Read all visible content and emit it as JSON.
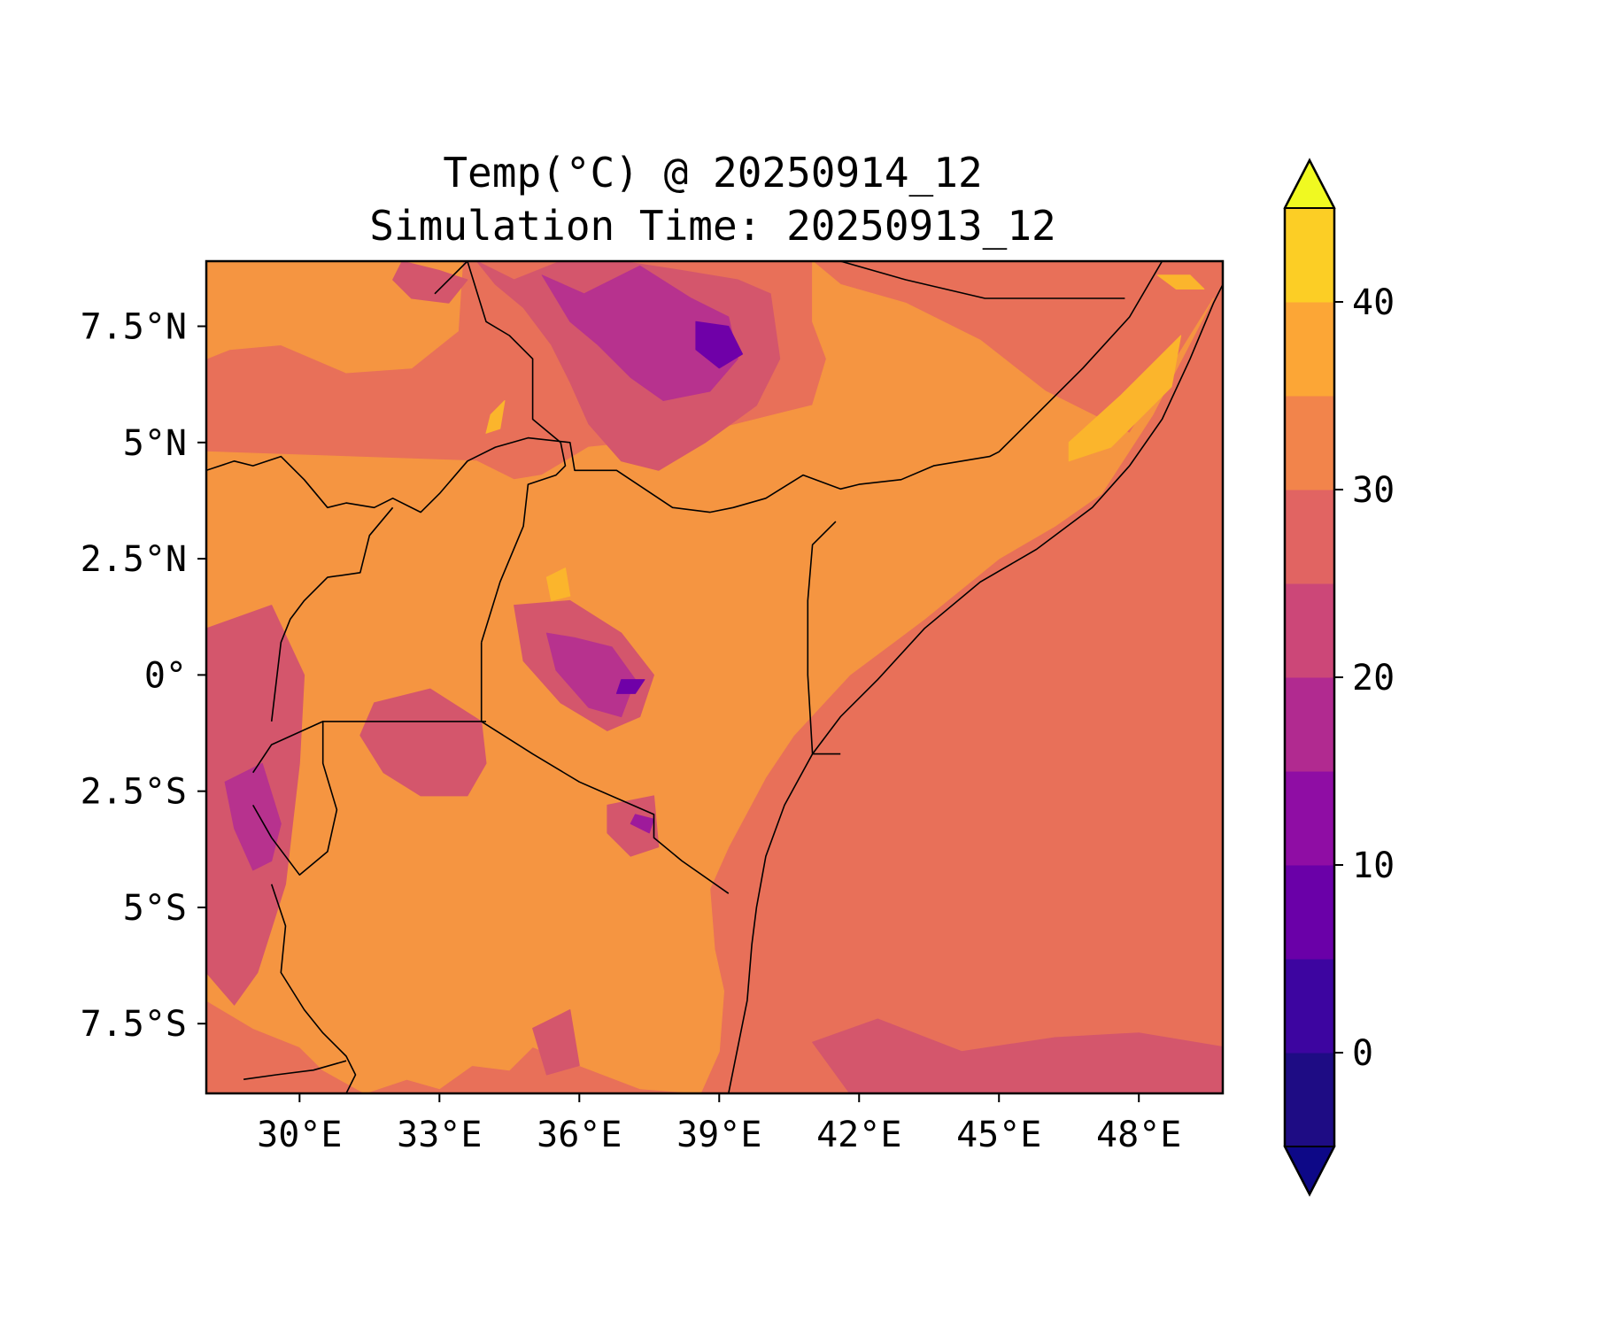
{
  "title": {
    "line1": "Temp(°C) @ 20250914_12",
    "line2": "Simulation Time: 20250913_12"
  },
  "map": {
    "extent": {
      "lon_min": 28.0,
      "lon_max": 49.8,
      "lat_min": -9.0,
      "lat_max": 8.9
    },
    "x_ticks": [
      {
        "value": 30,
        "label": "30°E"
      },
      {
        "value": 33,
        "label": "33°E"
      },
      {
        "value": 36,
        "label": "36°E"
      },
      {
        "value": 39,
        "label": "39°E"
      },
      {
        "value": 42,
        "label": "42°E"
      },
      {
        "value": 45,
        "label": "45°E"
      },
      {
        "value": 48,
        "label": "48°E"
      }
    ],
    "y_ticks": [
      {
        "value": 7.5,
        "label": "7.5°N"
      },
      {
        "value": 5,
        "label": "5°N"
      },
      {
        "value": 2.5,
        "label": "2.5°N"
      },
      {
        "value": 0,
        "label": "0°"
      },
      {
        "value": -2.5,
        "label": "2.5°S"
      },
      {
        "value": -5,
        "label": "5°S"
      },
      {
        "value": -7.5,
        "label": "7.5°S"
      }
    ],
    "colors": {
      "lt5": "#2a0b8a",
      "5_10": "#6f00a8",
      "10_15": "#9e1a9b",
      "15_20": "#b7328e",
      "20_25": "#d4566c",
      "25_30": "#e87059",
      "30_35": "#f59541",
      "35_40": "#fbb52c",
      "gt40": "#f0f921"
    },
    "regions": [
      {
        "level": "25_30",
        "lon": [
          28.0,
          49.8,
          49.8,
          28.0
        ],
        "lat": [
          8.9,
          8.9,
          -9.0,
          -9.0
        ]
      },
      {
        "level": "30_35",
        "lon": [
          28.0,
          33.8,
          34.6,
          35.2,
          36.2,
          38.2,
          41.0,
          41.3,
          41.0,
          41.0,
          41.6,
          43.0,
          44.6,
          46.0,
          47.8,
          49.6,
          48.3,
          47.2,
          46.2,
          45.0,
          43.4,
          41.8,
          40.6,
          40.0,
          39.2,
          38.8,
          38.9,
          39.1,
          39.0,
          38.6,
          37.3,
          36.0,
          35.0,
          34.5,
          33.7,
          33.0,
          32.3,
          31.4,
          30.5,
          30.0,
          29.0,
          28.0
        ],
        "lat": [
          4.8,
          4.6,
          4.2,
          4.3,
          4.9,
          5.1,
          5.8,
          6.8,
          7.6,
          8.9,
          8.4,
          8.0,
          7.2,
          6.1,
          5.2,
          8.1,
          5.6,
          3.9,
          3.2,
          2.5,
          1.2,
          0.0,
          -1.3,
          -2.2,
          -3.7,
          -4.6,
          -5.9,
          -6.8,
          -8.1,
          -9.0,
          -8.9,
          -8.4,
          -8.0,
          -8.5,
          -8.4,
          -8.9,
          -8.7,
          -9.0,
          -8.5,
          -8.0,
          -7.6,
          -7.0
        ]
      },
      {
        "level": "30_35",
        "lon": [
          28.0,
          33.5,
          33.4,
          32.4,
          31.0,
          29.6,
          28.5,
          28.0
        ],
        "lat": [
          8.9,
          8.9,
          7.4,
          6.6,
          6.5,
          7.1,
          7.0,
          6.8
        ]
      },
      {
        "level": "20_25",
        "lon": [
          33.8,
          34.6,
          35.6,
          36.9,
          38.2,
          39.4,
          40.1,
          40.3,
          39.8,
          38.7,
          37.7,
          36.9,
          36.2,
          35.8,
          35.4,
          34.8,
          34.2
        ],
        "lat": [
          8.9,
          8.5,
          8.9,
          8.9,
          8.7,
          8.5,
          8.2,
          6.8,
          5.8,
          5.0,
          4.4,
          4.6,
          5.4,
          6.3,
          7.1,
          7.9,
          8.4
        ]
      },
      {
        "level": "15_20",
        "lon": [
          35.2,
          36.1,
          37.3,
          38.4,
          39.2,
          39.4,
          38.8,
          37.8,
          37.1,
          36.4,
          35.8
        ],
        "lat": [
          8.6,
          8.2,
          8.8,
          8.1,
          7.7,
          6.8,
          6.1,
          5.9,
          6.4,
          7.1,
          7.6
        ]
      },
      {
        "level": "5_10",
        "lon": [
          38.5,
          39.2,
          39.5,
          39.0,
          38.5
        ],
        "lat": [
          7.6,
          7.5,
          6.9,
          6.6,
          7.0
        ]
      },
      {
        "level": "20_25",
        "lon": [
          31.6,
          32.8,
          33.9,
          34.0,
          33.6,
          32.6,
          31.8,
          31.3
        ],
        "lat": [
          -0.6,
          -0.3,
          -1.0,
          -1.9,
          -2.6,
          -2.6,
          -2.1,
          -1.3
        ]
      },
      {
        "level": "20_25",
        "lon": [
          34.6,
          35.8,
          36.9,
          37.6,
          37.3,
          36.6,
          35.6,
          34.8
        ],
        "lat": [
          1.5,
          1.6,
          0.9,
          0.0,
          -0.9,
          -1.2,
          -0.6,
          0.3
        ]
      },
      {
        "level": "15_20",
        "lon": [
          35.3,
          35.9,
          36.7,
          37.2,
          36.9,
          36.2,
          35.5
        ],
        "lat": [
          0.9,
          0.8,
          0.6,
          -0.1,
          -0.9,
          -0.7,
          0.1
        ]
      },
      {
        "level": "5_10",
        "lon": [
          36.9,
          37.4,
          37.2,
          36.8
        ],
        "lat": [
          -0.1,
          -0.1,
          -0.4,
          -0.4
        ]
      },
      {
        "level": "20_25",
        "lon": [
          28.0,
          29.4,
          30.1,
          30.0,
          29.7,
          29.1,
          28.6,
          28.0
        ],
        "lat": [
          1.0,
          1.5,
          0.0,
          -1.9,
          -4.5,
          -6.4,
          -7.1,
          -6.4
        ]
      },
      {
        "level": "15_20",
        "lon": [
          28.4,
          29.2,
          29.6,
          29.4,
          29.0,
          28.6
        ],
        "lat": [
          -2.3,
          -1.9,
          -3.2,
          -4.0,
          -4.2,
          -3.3
        ]
      },
      {
        "level": "20_25",
        "lon": [
          41.0,
          42.4,
          44.2,
          46.2,
          48.0,
          49.8,
          49.8,
          41.8
        ],
        "lat": [
          -7.9,
          -7.4,
          -8.1,
          -7.8,
          -7.7,
          -8.0,
          -9.0,
          -9.0
        ]
      },
      {
        "level": "35_40",
        "lon": [
          46.5,
          47.6,
          48.9,
          48.7,
          47.4,
          46.5
        ],
        "lat": [
          5.0,
          6.0,
          7.3,
          6.2,
          4.9,
          4.6
        ]
      },
      {
        "level": "35_40",
        "lon": [
          35.3,
          35.7,
          35.8,
          35.4
        ],
        "lat": [
          2.1,
          2.3,
          1.7,
          1.6
        ]
      },
      {
        "level": "35_40",
        "lon": [
          34.1,
          34.4,
          34.3,
          34.0
        ],
        "lat": [
          5.6,
          5.9,
          5.3,
          5.2
        ]
      },
      {
        "level": "35_40",
        "lon": [
          48.4,
          49.1,
          49.4,
          48.8
        ],
        "lat": [
          8.6,
          8.6,
          8.3,
          8.3
        ]
      },
      {
        "level": "20_25",
        "lon": [
          32.2,
          33.0,
          33.6,
          33.2,
          32.4,
          32.0
        ],
        "lat": [
          8.9,
          8.7,
          8.5,
          8.0,
          8.1,
          8.5
        ]
      },
      {
        "level": "20_25",
        "lon": [
          36.6,
          37.6,
          37.7,
          37.1,
          36.6
        ],
        "lat": [
          -2.8,
          -2.6,
          -3.7,
          -3.9,
          -3.4
        ]
      },
      {
        "level": "10_15",
        "lon": [
          37.2,
          37.6,
          37.5,
          37.1
        ],
        "lat": [
          -3.0,
          -3.1,
          -3.4,
          -3.2
        ]
      },
      {
        "level": "20_25",
        "lon": [
          35.0,
          35.8,
          36.0,
          35.3
        ],
        "lat": [
          -7.6,
          -7.2,
          -8.4,
          -8.6
        ]
      }
    ],
    "borders": [
      {
        "lon": [
          28.0,
          28.6,
          29.0,
          29.6,
          30.1,
          30.6,
          31.0,
          31.6,
          32.0,
          32.6,
          33.0,
          33.6,
          34.2,
          34.9,
          35.8,
          35.9,
          36.1,
          36.8,
          38.0,
          38.8,
          39.3,
          40.0,
          40.8,
          41.6,
          42.0,
          42.9,
          43.6,
          44.8,
          45.0,
          45.8,
          46.8,
          47.8,
          48.5
        ],
        "lat": [
          4.4,
          4.6,
          4.5,
          4.7,
          4.2,
          3.6,
          3.7,
          3.6,
          3.8,
          3.5,
          3.9,
          4.6,
          4.9,
          5.1,
          5.0,
          4.4,
          4.4,
          4.4,
          3.6,
          3.5,
          3.6,
          3.8,
          4.3,
          4.0,
          4.1,
          4.2,
          4.5,
          4.7,
          4.8,
          5.6,
          6.6,
          7.7,
          8.9
        ]
      },
      {
        "lon": [
          41.6,
          43.0,
          44.7,
          46.2,
          47.7
        ],
        "lat": [
          8.9,
          8.5,
          8.1,
          8.1,
          8.1
        ]
      },
      {
        "lon": [
          35.6,
          35.7,
          35.5,
          34.9,
          34.8,
          34.3,
          33.9
        ],
        "lat": [
          5.0,
          4.5,
          4.3,
          4.1,
          3.2,
          2.0,
          0.7
        ]
      },
      {
        "lon": [
          33.9,
          33.9,
          33.9,
          34.0
        ],
        "lat": [
          0.7,
          -0.4,
          -1.0,
          -1.0
        ]
      },
      {
        "lon": [
          30.5,
          31.0,
          32.0,
          33.0,
          33.9
        ],
        "lat": [
          -1.0,
          -1.0,
          -1.0,
          -1.0,
          -1.0
        ]
      },
      {
        "lon": [
          33.9,
          35.0,
          36.0,
          37.6,
          37.6,
          38.2,
          39.2
        ],
        "lat": [
          -1.0,
          -1.7,
          -2.3,
          -3.0,
          -3.5,
          -4.0,
          -4.7
        ]
      },
      {
        "lon": [
          41.0,
          40.9,
          40.9,
          41.0,
          41.5
        ],
        "lat": [
          -1.7,
          0.0,
          1.6,
          2.8,
          3.3
        ]
      },
      {
        "lon": [
          41.0,
          41.6
        ],
        "lat": [
          -1.7,
          -1.7
        ]
      },
      {
        "lon": [
          29.4,
          29.6,
          29.8,
          30.1,
          30.6,
          31.3,
          31.5,
          32.0
        ],
        "lat": [
          -1.0,
          0.7,
          1.2,
          1.6,
          2.1,
          2.2,
          3.0,
          3.6
        ]
      },
      {
        "lon": [
          29.0,
          29.4,
          30.0,
          30.6,
          30.8,
          30.5,
          30.5,
          29.4,
          29.0
        ],
        "lat": [
          -2.8,
          -3.5,
          -4.3,
          -3.8,
          -2.9,
          -1.9,
          -1.0,
          -1.5,
          -2.1
        ]
      },
      {
        "lon": [
          29.4,
          29.7,
          29.6,
          30.1,
          30.5,
          31.0,
          31.2,
          31.0
        ],
        "lat": [
          -4.5,
          -5.4,
          -6.4,
          -7.2,
          -7.7,
          -8.2,
          -8.6,
          -9.0
        ]
      },
      {
        "lon": [
          28.8,
          29.5,
          30.3,
          31.0
        ],
        "lat": [
          -8.7,
          -8.6,
          -8.5,
          -8.3
        ]
      },
      {
        "lon": [
          32.9,
          33.6,
          34.0,
          34.5,
          35.0,
          35.0,
          35.6
        ],
        "lat": [
          8.2,
          8.9,
          7.6,
          7.3,
          6.8,
          5.5,
          5.0
        ]
      }
    ],
    "coastline": {
      "lon": [
        39.2,
        39.6,
        39.7,
        39.8,
        40.0,
        40.4,
        41.0,
        41.6,
        42.4,
        43.4,
        44.6,
        45.8,
        47.0,
        47.8,
        48.5,
        49.1,
        49.6,
        49.8
      ],
      "lat": [
        -9.0,
        -7.0,
        -5.8,
        -5.0,
        -3.9,
        -2.8,
        -1.7,
        -0.9,
        -0.1,
        1.0,
        2.0,
        2.7,
        3.6,
        4.5,
        5.5,
        6.8,
        8.0,
        8.4
      ]
    }
  },
  "colorbar": {
    "ticks": [
      {
        "value": 0,
        "label": "0"
      },
      {
        "value": 10,
        "label": "10"
      },
      {
        "value": 20,
        "label": "20"
      },
      {
        "value": 30,
        "label": "30"
      },
      {
        "value": 40,
        "label": "40"
      }
    ],
    "bounds": [
      -5,
      0,
      5,
      10,
      15,
      20,
      25,
      30,
      35,
      40,
      45
    ],
    "bins": [
      {
        "from": -5,
        "to": 0,
        "color": "#1e0c84"
      },
      {
        "from": 0,
        "to": 5,
        "color": "#3d05a0"
      },
      {
        "from": 5,
        "to": 10,
        "color": "#6a00a8"
      },
      {
        "from": 10,
        "to": 15,
        "color": "#8f0da4"
      },
      {
        "from": 15,
        "to": 20,
        "color": "#b12a90"
      },
      {
        "from": 20,
        "to": 25,
        "color": "#cc4778"
      },
      {
        "from": 25,
        "to": 30,
        "color": "#e16462"
      },
      {
        "from": 30,
        "to": 35,
        "color": "#f2844b"
      },
      {
        "from": 35,
        "to": 40,
        "color": "#fca636"
      },
      {
        "from": 40,
        "to": 45,
        "color": "#fcce25"
      }
    ],
    "under_color": "#0d0887",
    "over_color": "#f0f921",
    "extend": "both"
  }
}
